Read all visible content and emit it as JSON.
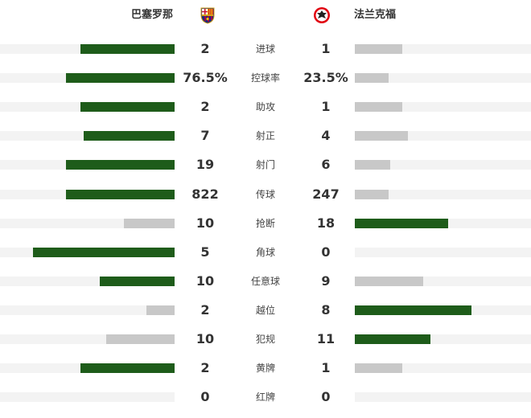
{
  "header": {
    "home_team": "巴塞罗那",
    "away_team": "法兰克福",
    "home_logo_icon": "fc-barcelona-crest-icon",
    "away_logo_icon": "eintracht-frankfurt-crest-icon"
  },
  "colors": {
    "leader": "#1e5c1a",
    "trailer": "#c8c8c8",
    "track": "#f3f3f3"
  },
  "stats": [
    {
      "label": "进球",
      "home": "2",
      "away": "1",
      "home_fill": 0.54,
      "away_fill": 0.27,
      "leader": "home"
    },
    {
      "label": "控球率",
      "home": "76.5%",
      "away": "23.5%",
      "home_fill": 0.62,
      "away_fill": 0.19,
      "leader": "home"
    },
    {
      "label": "助攻",
      "home": "2",
      "away": "1",
      "home_fill": 0.54,
      "away_fill": 0.27,
      "leader": "home"
    },
    {
      "label": "射正",
      "home": "7",
      "away": "4",
      "home_fill": 0.52,
      "away_fill": 0.3,
      "leader": "home"
    },
    {
      "label": "射门",
      "home": "19",
      "away": "6",
      "home_fill": 0.62,
      "away_fill": 0.2,
      "leader": "home"
    },
    {
      "label": "传球",
      "home": "822",
      "away": "247",
      "home_fill": 0.62,
      "away_fill": 0.19,
      "leader": "home"
    },
    {
      "label": "抢断",
      "home": "10",
      "away": "18",
      "home_fill": 0.29,
      "away_fill": 0.53,
      "leader": "away"
    },
    {
      "label": "角球",
      "home": "5",
      "away": "0",
      "home_fill": 0.81,
      "away_fill": 0,
      "leader": "home"
    },
    {
      "label": "任意球",
      "home": "10",
      "away": "9",
      "home_fill": 0.43,
      "away_fill": 0.39,
      "leader": "home"
    },
    {
      "label": "越位",
      "home": "2",
      "away": "8",
      "home_fill": 0.16,
      "away_fill": 0.66,
      "leader": "away"
    },
    {
      "label": "犯规",
      "home": "10",
      "away": "11",
      "home_fill": 0.39,
      "away_fill": 0.43,
      "leader": "away"
    },
    {
      "label": "黄牌",
      "home": "2",
      "away": "1",
      "home_fill": 0.54,
      "away_fill": 0.27,
      "leader": "home"
    },
    {
      "label": "红牌",
      "home": "0",
      "away": "0",
      "home_fill": 0,
      "away_fill": 0,
      "leader": "none"
    }
  ]
}
